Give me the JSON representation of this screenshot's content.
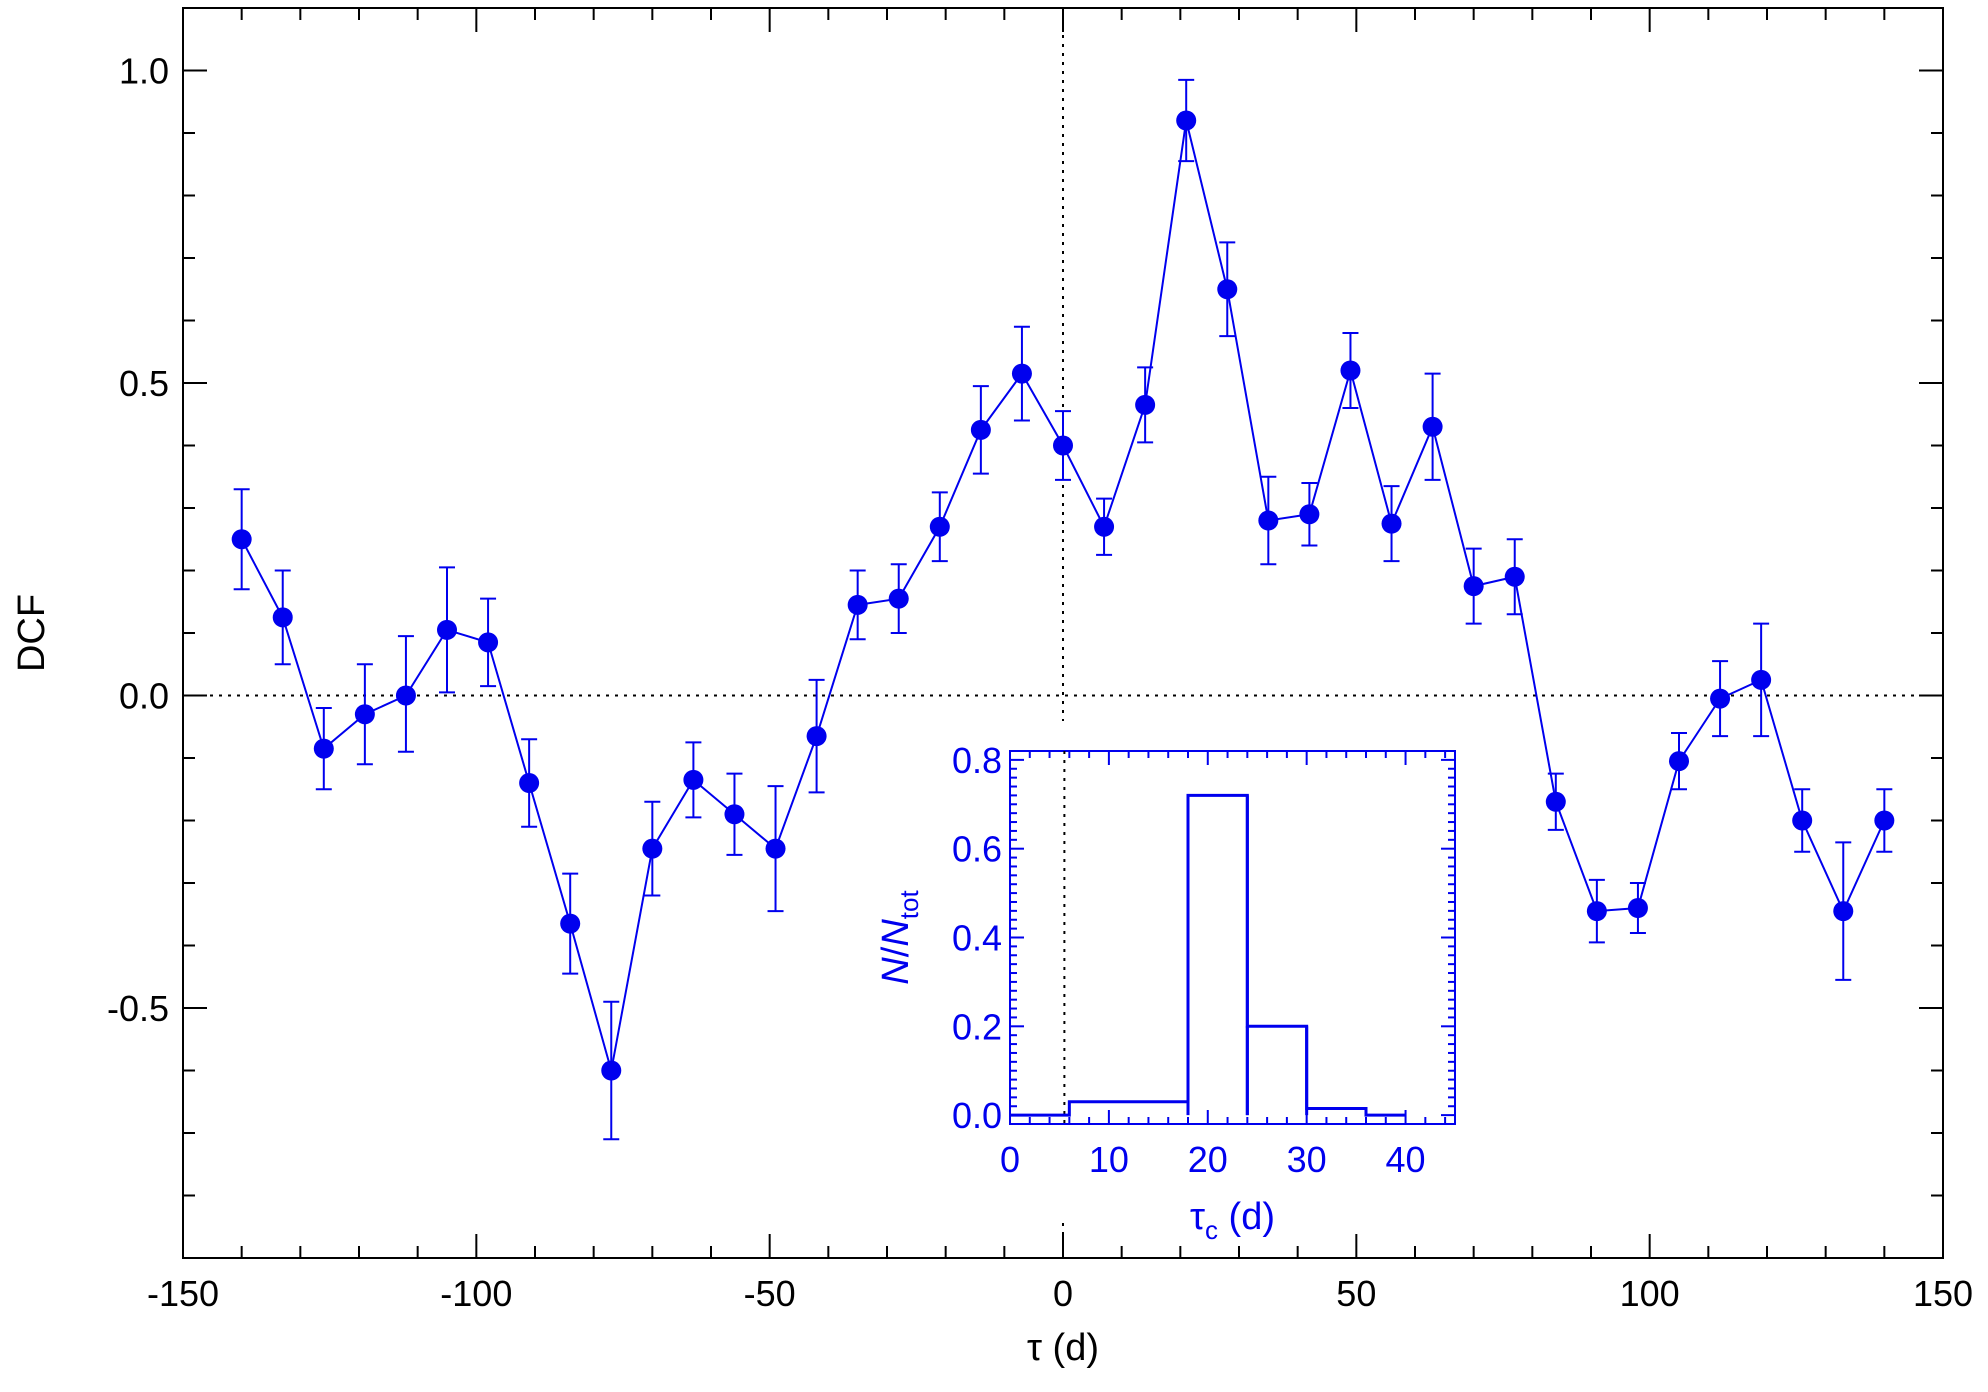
{
  "chart_data": [
    {
      "type": "scatter",
      "role": "main",
      "xlabel": "τ (d)",
      "ylabel": "DCF",
      "xlim": [
        -150,
        150
      ],
      "ylim": [
        -0.9,
        1.1
      ],
      "xticks": [
        -150,
        -100,
        -50,
        0,
        50,
        100,
        150
      ],
      "xtick_labels": [
        "-150",
        "-100",
        "-50",
        "0",
        "50",
        "100",
        "150"
      ],
      "yticks": [
        -0.5,
        0.0,
        0.5,
        1.0
      ],
      "ytick_labels": [
        "-0.5",
        "0.0",
        "0.5",
        "1.0"
      ],
      "reference_lines": {
        "x": 0,
        "y": 0,
        "style": "dotted"
      },
      "grid": false,
      "color": "#0000ee",
      "points": [
        {
          "x": -140,
          "y": 0.25,
          "err_lo": 0.08,
          "err_hi": 0.08
        },
        {
          "x": -133,
          "y": 0.125,
          "err_lo": 0.075,
          "err_hi": 0.075
        },
        {
          "x": -126,
          "y": -0.085,
          "err_lo": 0.065,
          "err_hi": 0.065
        },
        {
          "x": -119,
          "y": -0.03,
          "err_lo": 0.08,
          "err_hi": 0.08
        },
        {
          "x": -112,
          "y": 0.0,
          "err_lo": 0.09,
          "err_hi": 0.095
        },
        {
          "x": -105,
          "y": 0.105,
          "err_lo": 0.1,
          "err_hi": 0.1
        },
        {
          "x": -98,
          "y": 0.085,
          "err_lo": 0.07,
          "err_hi": 0.07
        },
        {
          "x": -91,
          "y": -0.14,
          "err_lo": 0.07,
          "err_hi": 0.07
        },
        {
          "x": -84,
          "y": -0.365,
          "err_lo": 0.08,
          "err_hi": 0.08
        },
        {
          "x": -77,
          "y": -0.6,
          "err_lo": 0.11,
          "err_hi": 0.11
        },
        {
          "x": -70,
          "y": -0.245,
          "err_lo": 0.075,
          "err_hi": 0.075
        },
        {
          "x": -63,
          "y": -0.135,
          "err_lo": 0.06,
          "err_hi": 0.06
        },
        {
          "x": -56,
          "y": -0.19,
          "err_lo": 0.065,
          "err_hi": 0.065
        },
        {
          "x": -49,
          "y": -0.245,
          "err_lo": 0.1,
          "err_hi": 0.1
        },
        {
          "x": -42,
          "y": -0.065,
          "err_lo": 0.09,
          "err_hi": 0.09
        },
        {
          "x": -35,
          "y": 0.145,
          "err_lo": 0.055,
          "err_hi": 0.055
        },
        {
          "x": -28,
          "y": 0.155,
          "err_lo": 0.055,
          "err_hi": 0.055
        },
        {
          "x": -21,
          "y": 0.27,
          "err_lo": 0.055,
          "err_hi": 0.055
        },
        {
          "x": -14,
          "y": 0.425,
          "err_lo": 0.07,
          "err_hi": 0.07
        },
        {
          "x": -7,
          "y": 0.515,
          "err_lo": 0.075,
          "err_hi": 0.075
        },
        {
          "x": 0,
          "y": 0.4,
          "err_lo": 0.055,
          "err_hi": 0.055
        },
        {
          "x": 7,
          "y": 0.27,
          "err_lo": 0.045,
          "err_hi": 0.045
        },
        {
          "x": 14,
          "y": 0.465,
          "err_lo": 0.06,
          "err_hi": 0.06
        },
        {
          "x": 21,
          "y": 0.92,
          "err_lo": 0.065,
          "err_hi": 0.065
        },
        {
          "x": 28,
          "y": 0.65,
          "err_lo": 0.075,
          "err_hi": 0.075
        },
        {
          "x": 35,
          "y": 0.28,
          "err_lo": 0.07,
          "err_hi": 0.07
        },
        {
          "x": 42,
          "y": 0.29,
          "err_lo": 0.05,
          "err_hi": 0.05
        },
        {
          "x": 49,
          "y": 0.52,
          "err_lo": 0.06,
          "err_hi": 0.06
        },
        {
          "x": 56,
          "y": 0.275,
          "err_lo": 0.06,
          "err_hi": 0.06
        },
        {
          "x": 63,
          "y": 0.43,
          "err_lo": 0.085,
          "err_hi": 0.085
        },
        {
          "x": 70,
          "y": 0.175,
          "err_lo": 0.06,
          "err_hi": 0.06
        },
        {
          "x": 77,
          "y": 0.19,
          "err_lo": 0.06,
          "err_hi": 0.06
        },
        {
          "x": 84,
          "y": -0.17,
          "err_lo": 0.045,
          "err_hi": 0.045
        },
        {
          "x": 91,
          "y": -0.345,
          "err_lo": 0.05,
          "err_hi": 0.05
        },
        {
          "x": 98,
          "y": -0.34,
          "err_lo": 0.04,
          "err_hi": 0.04
        },
        {
          "x": 105,
          "y": -0.105,
          "err_lo": 0.045,
          "err_hi": 0.045
        },
        {
          "x": 112,
          "y": -0.005,
          "err_lo": 0.06,
          "err_hi": 0.06
        },
        {
          "x": 119,
          "y": 0.025,
          "err_lo": 0.09,
          "err_hi": 0.09
        },
        {
          "x": 126,
          "y": -0.2,
          "err_lo": 0.05,
          "err_hi": 0.05
        },
        {
          "x": 133,
          "y": -0.345,
          "err_lo": 0.11,
          "err_hi": 0.11
        },
        {
          "x": 140,
          "y": -0.2,
          "err_lo": 0.05,
          "err_hi": 0.05
        }
      ]
    },
    {
      "type": "histogram",
      "role": "inset",
      "xlabel": "τ",
      "xlabel_sub": "c",
      "xlabel_suffix": " (d)",
      "ylabel_parts": {
        "n": "N",
        "slash": "/",
        "n2": "N",
        "sub": "tot"
      },
      "xlim": [
        0,
        45
      ],
      "ylim": [
        -0.02,
        0.82
      ],
      "xticks": [
        0,
        10,
        20,
        30,
        40
      ],
      "xtick_labels": [
        "0",
        "10",
        "20",
        "30",
        "40"
      ],
      "yticks": [
        0.0,
        0.2,
        0.4,
        0.6,
        0.8
      ],
      "ytick_labels": [
        "0.0",
        "0.2",
        "0.4",
        "0.6",
        "0.8"
      ],
      "reference_lines": {
        "x": 5.5,
        "style": "dotted"
      },
      "color": "#0000ee",
      "bins": [
        {
          "x0": 0,
          "x1": 6,
          "value": 0.0
        },
        {
          "x0": 6,
          "x1": 18,
          "value": 0.03
        },
        {
          "x0": 18,
          "x1": 24,
          "value": 0.72
        },
        {
          "x0": 24,
          "x1": 30,
          "value": 0.2
        },
        {
          "x0": 30,
          "x1": 36,
          "value": 0.015
        },
        {
          "x0": 36,
          "x1": 40,
          "value": 0.0
        }
      ]
    }
  ]
}
